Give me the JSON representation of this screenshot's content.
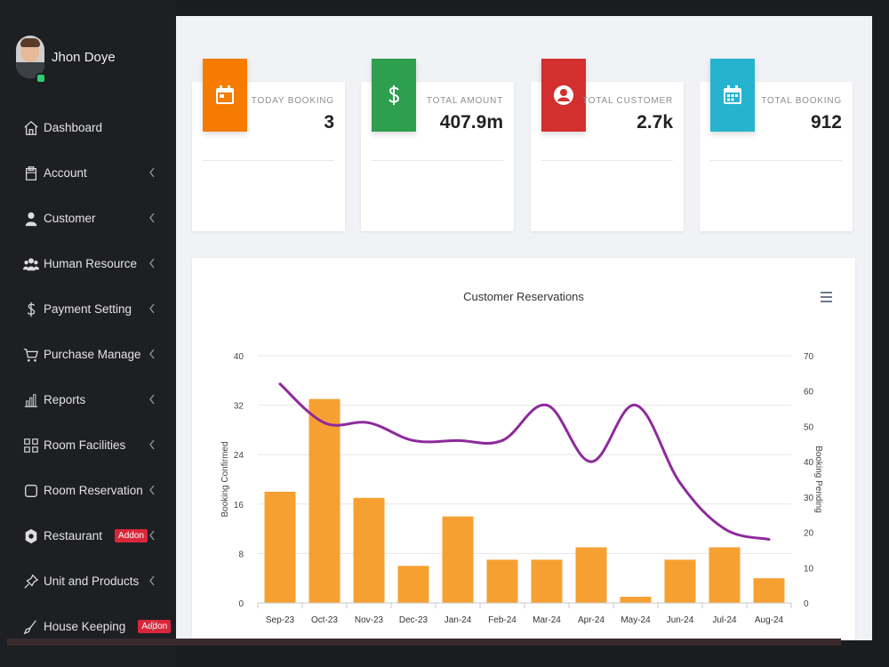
{
  "user": {
    "name": "Jhon Doye"
  },
  "sidebar": {
    "items": [
      {
        "label": "Dashboard",
        "icon": "home-icon",
        "has_chevron": false
      },
      {
        "label": "Account",
        "icon": "clipboard-icon",
        "has_chevron": true
      },
      {
        "label": "Customer",
        "icon": "user-icon",
        "has_chevron": true
      },
      {
        "label": "Human Resource",
        "icon": "users-icon",
        "has_chevron": true
      },
      {
        "label": "Payment Setting",
        "icon": "dollar-icon",
        "has_chevron": true
      },
      {
        "label": "Purchase Manage",
        "icon": "cart-icon",
        "has_chevron": true
      },
      {
        "label": "Reports",
        "icon": "bar-chart-icon",
        "has_chevron": true
      },
      {
        "label": "Room Facilities",
        "icon": "grid-icon",
        "has_chevron": true
      },
      {
        "label": "Room Reservation",
        "icon": "square-icon",
        "has_chevron": true
      },
      {
        "label": "Restaurant",
        "icon": "restaurant-icon",
        "has_chevron": true,
        "badge": "Addon"
      },
      {
        "label": "Unit and Products",
        "icon": "pin-icon",
        "has_chevron": true
      },
      {
        "label": "House Keeping",
        "icon": "broom-icon",
        "has_chevron": true,
        "badge": "Addon"
      }
    ]
  },
  "stats": [
    {
      "label": "TODAY BOOKING",
      "value": "3",
      "color": "#f57c00",
      "icon": "calendar-icon"
    },
    {
      "label": "TOTAL AMOUNT",
      "value": "407.9m",
      "color": "#2e9e4f",
      "icon": "dollar-icon"
    },
    {
      "label": "TOTAL CUSTOMER",
      "value": "2.7k",
      "color": "#d32f2f",
      "icon": "user-circle-icon"
    },
    {
      "label": "TOTAL BOOKING",
      "value": "912",
      "color": "#26b3cf",
      "icon": "calendar-grid-icon"
    }
  ],
  "chart_data": {
    "type": "bar",
    "title": "Customer Reservations",
    "categories": [
      "Sep-23",
      "Oct-23",
      "Nov-23",
      "Dec-23",
      "Jan-24",
      "Feb-24",
      "Mar-24",
      "Apr-24",
      "May-24",
      "Jun-24",
      "Jul-24",
      "Aug-24"
    ],
    "series": [
      {
        "name": "Booking Confirmed",
        "type": "bar",
        "axis": "left",
        "color": "#f7a032",
        "values": [
          18,
          33,
          17,
          6,
          14,
          7,
          7,
          9,
          1,
          7,
          9,
          4
        ]
      },
      {
        "name": "Booking Pending",
        "type": "line",
        "axis": "right",
        "color": "#8e2a9c",
        "values": [
          62,
          51,
          51,
          46,
          46,
          46,
          56,
          40,
          56,
          34,
          21,
          18
        ]
      }
    ],
    "y_left": {
      "label": "Booking Confirmed",
      "min": 0,
      "max": 40,
      "ticks": [
        0,
        8,
        16,
        24,
        32,
        40
      ]
    },
    "y_right": {
      "label": "Booking Pending",
      "min": 0,
      "max": 70,
      "ticks": [
        0,
        10,
        20,
        30,
        40,
        50,
        60,
        70
      ]
    },
    "grid": true,
    "legend": "none"
  }
}
